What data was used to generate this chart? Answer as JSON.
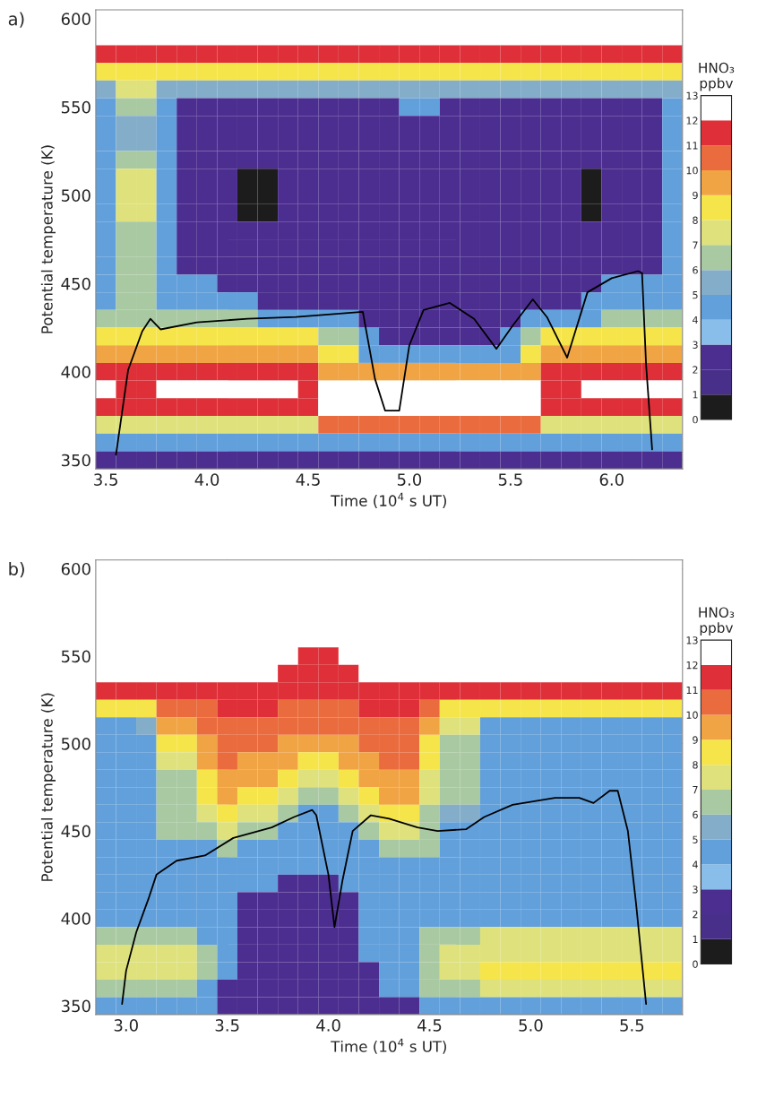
{
  "chart_data": [
    {
      "type": "heatmap",
      "title": "a)",
      "xlabel": "Time (10$^{4}$ s UT)",
      "ylabel": "Potential temperature (K)",
      "clabel": "HNO₃\nppbv",
      "xlim": [
        3.45,
        6.35
      ],
      "ylim": [
        345,
        605
      ],
      "xticks": [
        {
          "value": 3.5,
          "label": "3.5"
        },
        {
          "value": 4.0,
          "label": "4.0"
        },
        {
          "value": 4.5,
          "label": "4.5"
        },
        {
          "value": 5.0,
          "label": "5.0"
        },
        {
          "value": 5.5,
          "label": "5.5"
        },
        {
          "value": 6.0,
          "label": "6.0"
        }
      ],
      "yticks": [
        350,
        400,
        450,
        500,
        550,
        600
      ],
      "clim": [
        0,
        13
      ],
      "cticks": [
        0,
        1,
        2,
        3,
        4,
        5,
        6,
        7,
        8,
        9,
        10,
        11,
        12,
        13
      ],
      "colors": [
        "#1c1c1c",
        "#48308a",
        "#4c2e90",
        "#88bee9",
        "#62a0dc",
        "#83adc9",
        "#a9c9a2",
        "#dfe27c",
        "#f6e54a",
        "#f0a444",
        "#ea6c3e",
        "#df3039",
        "#ffffff"
      ],
      "cells": [
        [
          12.5,
          12.5,
          12.5,
          12.5,
          12.5,
          12.5,
          12.5,
          12.5,
          12.5,
          12.5,
          12.5,
          12.5,
          12.5,
          12.5,
          12.5,
          12.5,
          12.5,
          12.5,
          12.5,
          12.5,
          12.5,
          12.5,
          12.5,
          12.5,
          12.5,
          12.5,
          12.5,
          12.5,
          12.5
        ],
        [
          12.5,
          12.5,
          12.5,
          12.5,
          12.5,
          12.5,
          12.5,
          12.5,
          12.5,
          12.5,
          12.5,
          12.5,
          12.5,
          12.5,
          12.5,
          12.5,
          12.5,
          12.5,
          12.5,
          12.5,
          12.5,
          12.5,
          12.5,
          12.5,
          12.5,
          12.5,
          12.5,
          12.5,
          12.5
        ],
        [
          11.5,
          11.5,
          11.5,
          11.5,
          11.5,
          11.5,
          11.5,
          11.5,
          11.5,
          11.5,
          11.5,
          11.5,
          11.5,
          11.5,
          11.5,
          11.5,
          11.5,
          11.5,
          11.5,
          11.5,
          11.5,
          11.5,
          11.5,
          11.5,
          11.5,
          11.5,
          11.5,
          11.5,
          11.5
        ],
        [
          8.5,
          8.5,
          8.5,
          8.5,
          8.5,
          8.5,
          8.5,
          8.5,
          8.5,
          8.5,
          8.5,
          8.5,
          8.5,
          8.5,
          8.5,
          8.5,
          8.5,
          8.5,
          8.5,
          8.5,
          8.5,
          8.5,
          8.5,
          8.5,
          8.5,
          8.5,
          8.5,
          8.5,
          8.5
        ],
        [
          5.5,
          7.5,
          7.5,
          5.5,
          5.5,
          5.5,
          5.5,
          5.5,
          5.5,
          5.5,
          5.5,
          5.5,
          5.5,
          5.5,
          5.5,
          5.5,
          5.5,
          5.5,
          5.5,
          5.5,
          5.5,
          5.5,
          5.5,
          5.5,
          5.5,
          5.5,
          5.5,
          5.5,
          5.5
        ],
        [
          4.5,
          6.5,
          6.5,
          4.5,
          2.5,
          2.5,
          2.5,
          2.5,
          2.5,
          2.5,
          2.5,
          2.5,
          2.5,
          2.5,
          2.5,
          4.5,
          4.5,
          2.5,
          2.5,
          2.5,
          2.5,
          2.5,
          2.5,
          2.5,
          2.5,
          2.5,
          2.5,
          2.5,
          4.5
        ],
        [
          4.5,
          5.5,
          5.5,
          4.5,
          2.5,
          2.5,
          2.5,
          2.5,
          2.5,
          2.5,
          2.5,
          2.5,
          2.5,
          2.5,
          2.5,
          2.5,
          2.5,
          2.5,
          2.5,
          2.5,
          2.5,
          2.5,
          2.5,
          2.5,
          2.5,
          2.5,
          2.5,
          2.5,
          4.5
        ],
        [
          4.5,
          5.5,
          5.5,
          4.5,
          2.5,
          2.5,
          2.5,
          2.5,
          2.5,
          2.5,
          2.5,
          2.5,
          2.5,
          2.5,
          2.5,
          2.5,
          2.5,
          2.5,
          2.5,
          2.5,
          2.5,
          2.5,
          2.5,
          2.5,
          2.5,
          2.5,
          2.5,
          2.5,
          4.5
        ],
        [
          4.5,
          6.5,
          6.5,
          4.5,
          2.5,
          2.5,
          2.5,
          2.5,
          2.5,
          2.5,
          2.5,
          2.5,
          2.5,
          2.5,
          2.5,
          2.5,
          2.5,
          2.5,
          2.5,
          2.5,
          2.5,
          2.5,
          2.5,
          2.5,
          2.5,
          2.5,
          2.5,
          2.5,
          4.5
        ],
        [
          4.5,
          7.5,
          7.5,
          4.5,
          2.5,
          2.5,
          2.5,
          0.5,
          0.5,
          2.5,
          2.5,
          2.5,
          2.5,
          2.5,
          2.5,
          2.5,
          2.5,
          2.5,
          2.5,
          2.5,
          2.5,
          2.5,
          2.5,
          2.5,
          0.5,
          2.5,
          2.5,
          2.5,
          4.5
        ],
        [
          4.5,
          7.5,
          7.5,
          4.5,
          2.5,
          2.5,
          2.5,
          0.5,
          0.5,
          2.5,
          2.5,
          2.5,
          2.5,
          2.5,
          2.5,
          2.5,
          2.5,
          2.5,
          2.5,
          2.5,
          2.5,
          2.5,
          2.5,
          2.5,
          0.5,
          2.5,
          2.5,
          2.5,
          4.5
        ],
        [
          4.5,
          7.5,
          7.5,
          4.5,
          2.5,
          2.5,
          2.5,
          0.5,
          0.5,
          2.5,
          2.5,
          2.5,
          2.5,
          2.5,
          2.5,
          2.5,
          2.5,
          2.5,
          2.5,
          2.5,
          2.5,
          2.5,
          2.5,
          2.5,
          0.5,
          2.5,
          2.5,
          2.5,
          4.5
        ],
        [
          4.5,
          6.5,
          6.5,
          4.5,
          2.5,
          2.5,
          2.5,
          2.5,
          2.5,
          2.5,
          2.5,
          2.5,
          2.5,
          2.5,
          2.5,
          2.5,
          2.5,
          2.5,
          2.5,
          2.5,
          2.5,
          2.5,
          2.5,
          2.5,
          2.5,
          2.5,
          2.5,
          2.5,
          4.5
        ],
        [
          4.5,
          6.5,
          6.5,
          4.5,
          2.5,
          2.5,
          2.5,
          2.5,
          2.5,
          2.5,
          2.5,
          2.5,
          2.5,
          2.5,
          2.5,
          2.5,
          2.5,
          2.5,
          2.5,
          2.5,
          2.5,
          2.5,
          2.5,
          2.5,
          2.5,
          2.5,
          2.5,
          2.5,
          4.5
        ],
        [
          4.5,
          6.5,
          6.5,
          4.5,
          2.5,
          2.5,
          2.5,
          2.5,
          2.5,
          2.5,
          2.5,
          2.5,
          2.5,
          2.5,
          2.5,
          2.5,
          2.5,
          2.5,
          2.5,
          2.5,
          2.5,
          2.5,
          2.5,
          2.5,
          2.5,
          2.5,
          2.5,
          2.5,
          4.5
        ],
        [
          4.5,
          6.5,
          6.5,
          4.5,
          4.5,
          4.5,
          2.5,
          2.5,
          2.5,
          2.5,
          2.5,
          2.5,
          2.5,
          2.5,
          2.5,
          2.5,
          2.5,
          2.5,
          2.5,
          2.5,
          2.5,
          2.5,
          2.5,
          2.5,
          2.5,
          4.5,
          4.5,
          4.5,
          4.5
        ],
        [
          4.5,
          6.5,
          6.5,
          4.5,
          4.5,
          4.5,
          4.5,
          4.5,
          2.5,
          2.5,
          2.5,
          2.5,
          2.5,
          2.5,
          2.5,
          2.5,
          2.5,
          2.5,
          2.5,
          2.5,
          2.5,
          2.5,
          2.5,
          2.5,
          4.5,
          4.5,
          4.5,
          4.5,
          4.5
        ],
        [
          6.5,
          6.5,
          6.5,
          6.5,
          6.5,
          6.5,
          6.5,
          6.5,
          4.5,
          4.5,
          4.5,
          4.5,
          4.5,
          2.5,
          2.5,
          2.5,
          2.5,
          2.5,
          2.5,
          2.5,
          2.5,
          4.5,
          4.5,
          4.5,
          4.5,
          6.5,
          6.5,
          6.5,
          6.5
        ],
        [
          8.5,
          8.5,
          8.5,
          8.5,
          8.5,
          8.5,
          8.5,
          8.5,
          8.5,
          8.5,
          8.5,
          6.5,
          6.5,
          4.5,
          2.5,
          2.5,
          2.5,
          2.5,
          2.5,
          2.5,
          4.5,
          6.5,
          8.5,
          8.5,
          8.5,
          8.5,
          8.5,
          8.5,
          8.5
        ],
        [
          9.5,
          9.5,
          9.5,
          9.5,
          9.5,
          9.5,
          9.5,
          9.5,
          9.5,
          9.5,
          9.5,
          8.5,
          8.5,
          4.5,
          4.5,
          4.5,
          4.5,
          4.5,
          4.5,
          4.5,
          4.5,
          8.5,
          9.5,
          9.5,
          9.5,
          9.5,
          9.5,
          9.5,
          9.5
        ],
        [
          11.5,
          11.5,
          11.5,
          11.5,
          11.5,
          11.5,
          11.5,
          11.5,
          11.5,
          11.5,
          11.5,
          9.5,
          9.5,
          9.5,
          9.5,
          9.5,
          9.5,
          9.5,
          9.5,
          9.5,
          9.5,
          9.5,
          11.5,
          11.5,
          11.5,
          11.5,
          11.5,
          11.5,
          11.5
        ],
        [
          12.5,
          11.5,
          11.5,
          12.5,
          12.5,
          12.5,
          12.5,
          12.5,
          12.5,
          12.5,
          11.5,
          12.5,
          12.5,
          12.5,
          12.5,
          12.5,
          12.5,
          12.5,
          12.5,
          12.5,
          12.5,
          12.5,
          11.5,
          11.5,
          12.5,
          12.5,
          12.5,
          12.5,
          12.5
        ],
        [
          11.5,
          11.5,
          11.5,
          11.5,
          11.5,
          11.5,
          11.5,
          11.5,
          11.5,
          11.5,
          11.5,
          12.5,
          12.5,
          12.5,
          12.5,
          12.5,
          12.5,
          12.5,
          12.5,
          12.5,
          12.5,
          12.5,
          11.5,
          11.5,
          11.5,
          11.5,
          11.5,
          11.5,
          11.5
        ],
        [
          7.5,
          7.5,
          7.5,
          7.5,
          7.5,
          7.5,
          7.5,
          7.5,
          7.5,
          7.5,
          7.5,
          10.5,
          10.5,
          10.5,
          10.5,
          10.5,
          10.5,
          10.5,
          10.5,
          10.5,
          10.5,
          10.5,
          7.5,
          7.5,
          7.5,
          7.5,
          7.5,
          7.5,
          7.5
        ],
        [
          4.5,
          4.5,
          4.5,
          4.5,
          4.5,
          4.5,
          4.5,
          4.5,
          4.5,
          4.5,
          4.5,
          4.5,
          4.5,
          4.5,
          4.5,
          4.5,
          4.5,
          4.5,
          4.5,
          4.5,
          4.5,
          4.5,
          4.5,
          4.5,
          4.5,
          4.5,
          4.5,
          4.5,
          4.5
        ],
        [
          2.5,
          2.5,
          2.5,
          2.5,
          2.5,
          2.5,
          2.5,
          2.5,
          2.5,
          2.5,
          2.5,
          2.5,
          2.5,
          2.5,
          2.5,
          2.5,
          2.5,
          2.5,
          2.5,
          2.5,
          2.5,
          2.5,
          2.5,
          2.5,
          2.5,
          2.5,
          2.5,
          2.5,
          2.5
        ]
      ],
      "series": [
        {
          "type": "line",
          "color": "#000000",
          "x": [
            3.55,
            3.61,
            3.68,
            3.72,
            3.77,
            3.95,
            4.2,
            4.44,
            4.77,
            4.83,
            4.88,
            4.95,
            5.0,
            5.07,
            5.2,
            5.32,
            5.43,
            5.51,
            5.61,
            5.68,
            5.78,
            5.88,
            6.0,
            6.13,
            6.15,
            6.17,
            6.2
          ],
          "values": [
            353,
            401,
            423,
            430,
            424,
            428,
            430,
            431,
            434,
            396,
            378,
            378,
            415,
            435,
            439,
            430,
            413,
            426,
            441,
            431,
            408,
            445,
            453,
            457,
            456,
            404,
            356
          ]
        }
      ]
    },
    {
      "type": "heatmap",
      "title": "b)",
      "xlabel": "Time (10$^{4}$ s UT)",
      "ylabel": "Potential temperature (K)",
      "clabel": "HNO₃\nppbv",
      "xlim": [
        2.85,
        5.75
      ],
      "ylim": [
        345,
        605
      ],
      "xticks": [
        {
          "value": 3.0,
          "label": "3.0"
        },
        {
          "value": 3.5,
          "label": "3.5"
        },
        {
          "value": 4.0,
          "label": "4.0"
        },
        {
          "value": 4.5,
          "label": "4.5"
        },
        {
          "value": 5.0,
          "label": "5.0"
        },
        {
          "value": 5.5,
          "label": "5.5"
        }
      ],
      "yticks": [
        350,
        400,
        450,
        500,
        550,
        600
      ],
      "clim": [
        0,
        13
      ],
      "cticks": [
        0,
        1,
        2,
        3,
        4,
        5,
        6,
        7,
        8,
        9,
        10,
        11,
        12,
        13
      ],
      "colors": [
        "#1c1c1c",
        "#48308a",
        "#4c2e90",
        "#88bee9",
        "#62a0dc",
        "#83adc9",
        "#a9c9a2",
        "#dfe27c",
        "#f6e54a",
        "#f0a444",
        "#ea6c3e",
        "#df3039",
        "#ffffff"
      ],
      "cells": [
        [
          12.5,
          12.5,
          12.5,
          12.5,
          12.5,
          12.5,
          12.5,
          12.5,
          12.5,
          12.5,
          12.5,
          12.5,
          12.5,
          12.5,
          12.5,
          12.5,
          12.5,
          12.5,
          12.5,
          12.5,
          12.5,
          12.5,
          12.5,
          12.5,
          12.5,
          12.5,
          12.5,
          12.5,
          12.5
        ],
        [
          12.5,
          12.5,
          12.5,
          12.5,
          12.5,
          12.5,
          12.5,
          12.5,
          12.5,
          12.5,
          12.5,
          12.5,
          12.5,
          12.5,
          12.5,
          12.5,
          12.5,
          12.5,
          12.5,
          12.5,
          12.5,
          12.5,
          12.5,
          12.5,
          12.5,
          12.5,
          12.5,
          12.5,
          12.5
        ],
        [
          12.5,
          12.5,
          12.5,
          12.5,
          12.5,
          12.5,
          12.5,
          12.5,
          12.5,
          12.5,
          12.5,
          12.5,
          12.5,
          12.5,
          12.5,
          12.5,
          12.5,
          12.5,
          12.5,
          12.5,
          12.5,
          12.5,
          12.5,
          12.5,
          12.5,
          12.5,
          12.5,
          12.5,
          12.5
        ],
        [
          12.5,
          12.5,
          12.5,
          12.5,
          12.5,
          12.5,
          12.5,
          12.5,
          12.5,
          12.5,
          12.5,
          12.5,
          12.5,
          12.5,
          12.5,
          12.5,
          12.5,
          12.5,
          12.5,
          12.5,
          12.5,
          12.5,
          12.5,
          12.5,
          12.5,
          12.5,
          12.5,
          12.5,
          12.5
        ],
        [
          12.5,
          12.5,
          12.5,
          12.5,
          12.5,
          12.5,
          12.5,
          12.5,
          12.5,
          12.5,
          12.5,
          12.5,
          12.5,
          12.5,
          12.5,
          12.5,
          12.5,
          12.5,
          12.5,
          12.5,
          12.5,
          12.5,
          12.5,
          12.5,
          12.5,
          12.5,
          12.5,
          12.5,
          12.5
        ],
        [
          12.5,
          12.5,
          12.5,
          12.5,
          12.5,
          12.5,
          12.5,
          12.5,
          12.5,
          12.5,
          11.5,
          11.5,
          12.5,
          12.5,
          12.5,
          12.5,
          12.5,
          12.5,
          12.5,
          12.5,
          12.5,
          12.5,
          12.5,
          12.5,
          12.5,
          12.5,
          12.5,
          12.5,
          12.5
        ],
        [
          12.5,
          12.5,
          12.5,
          12.5,
          12.5,
          12.5,
          12.5,
          12.5,
          12.5,
          11.5,
          11.5,
          11.5,
          11.5,
          12.5,
          12.5,
          12.5,
          12.5,
          12.5,
          12.5,
          12.5,
          12.5,
          12.5,
          12.5,
          12.5,
          12.5,
          12.5,
          12.5,
          12.5,
          12.5
        ],
        [
          11.5,
          11.5,
          11.5,
          11.5,
          11.5,
          11.5,
          11.5,
          11.5,
          11.5,
          11.5,
          11.5,
          11.5,
          11.5,
          11.5,
          11.5,
          11.5,
          11.5,
          11.5,
          11.5,
          11.5,
          11.5,
          11.5,
          11.5,
          11.5,
          11.5,
          11.5,
          11.5,
          11.5,
          11.5
        ],
        [
          8.5,
          8.5,
          8.5,
          10.5,
          10.5,
          10.5,
          11.5,
          11.5,
          11.5,
          10.5,
          10.5,
          10.5,
          10.5,
          11.5,
          11.5,
          11.5,
          10.5,
          8.5,
          8.5,
          8.5,
          8.5,
          8.5,
          8.5,
          8.5,
          8.5,
          8.5,
          8.5,
          8.5,
          8.5
        ],
        [
          4.5,
          4.5,
          5.5,
          9.5,
          9.5,
          10.5,
          10.5,
          10.5,
          10.5,
          10.5,
          10.5,
          10.5,
          10.5,
          10.5,
          10.5,
          10.5,
          9.5,
          7.5,
          7.5,
          4.5,
          4.5,
          4.5,
          4.5,
          4.5,
          4.5,
          4.5,
          4.5,
          4.5,
          4.5
        ],
        [
          4.5,
          4.5,
          4.5,
          8.5,
          8.5,
          9.5,
          10.5,
          10.5,
          10.5,
          9.5,
          9.5,
          9.5,
          9.5,
          10.5,
          10.5,
          10.5,
          8.5,
          6.5,
          6.5,
          4.5,
          4.5,
          4.5,
          4.5,
          4.5,
          4.5,
          4.5,
          4.5,
          4.5,
          4.5
        ],
        [
          4.5,
          4.5,
          4.5,
          7.5,
          7.5,
          9.5,
          10.5,
          9.5,
          9.5,
          9.5,
          8.5,
          8.5,
          9.5,
          9.5,
          10.5,
          10.5,
          8.5,
          6.5,
          6.5,
          4.5,
          4.5,
          4.5,
          4.5,
          4.5,
          4.5,
          4.5,
          4.5,
          4.5,
          4.5
        ],
        [
          4.5,
          4.5,
          4.5,
          6.5,
          6.5,
          8.5,
          9.5,
          9.5,
          9.5,
          8.5,
          7.5,
          7.5,
          8.5,
          9.5,
          9.5,
          9.5,
          7.5,
          6.5,
          6.5,
          4.5,
          4.5,
          4.5,
          4.5,
          4.5,
          4.5,
          4.5,
          4.5,
          4.5,
          4.5
        ],
        [
          4.5,
          4.5,
          4.5,
          6.5,
          6.5,
          8.5,
          9.5,
          8.5,
          8.5,
          7.5,
          6.5,
          6.5,
          7.5,
          8.5,
          9.5,
          9.5,
          7.5,
          6.5,
          6.5,
          4.5,
          4.5,
          4.5,
          4.5,
          4.5,
          4.5,
          4.5,
          4.5,
          4.5,
          4.5
        ],
        [
          4.5,
          4.5,
          4.5,
          6.5,
          6.5,
          7.5,
          8.5,
          7.5,
          7.5,
          6.5,
          4.5,
          4.5,
          6.5,
          7.5,
          8.5,
          8.5,
          6.5,
          5.5,
          5.5,
          4.5,
          4.5,
          4.5,
          4.5,
          4.5,
          4.5,
          4.5,
          4.5,
          4.5,
          4.5
        ],
        [
          4.5,
          4.5,
          4.5,
          6.5,
          6.5,
          6.5,
          7.5,
          6.5,
          6.5,
          4.5,
          4.5,
          4.5,
          4.5,
          6.5,
          7.5,
          7.5,
          6.5,
          4.5,
          4.5,
          4.5,
          4.5,
          4.5,
          4.5,
          4.5,
          4.5,
          4.5,
          4.5,
          4.5,
          4.5
        ],
        [
          4.5,
          4.5,
          4.5,
          4.5,
          4.5,
          4.5,
          6.5,
          4.5,
          4.5,
          4.5,
          4.5,
          4.5,
          4.5,
          4.5,
          6.5,
          6.5,
          6.5,
          4.5,
          4.5,
          4.5,
          4.5,
          4.5,
          4.5,
          4.5,
          4.5,
          4.5,
          4.5,
          4.5,
          4.5
        ],
        [
          4.5,
          4.5,
          4.5,
          4.5,
          4.5,
          4.5,
          4.5,
          4.5,
          4.5,
          4.5,
          4.5,
          4.5,
          4.5,
          4.5,
          4.5,
          4.5,
          4.5,
          4.5,
          4.5,
          4.5,
          4.5,
          4.5,
          4.5,
          4.5,
          4.5,
          4.5,
          4.5,
          4.5,
          4.5
        ],
        [
          4.5,
          4.5,
          4.5,
          4.5,
          4.5,
          4.5,
          4.5,
          4.5,
          4.5,
          2.5,
          2.5,
          2.5,
          4.5,
          4.5,
          4.5,
          4.5,
          4.5,
          4.5,
          4.5,
          4.5,
          4.5,
          4.5,
          4.5,
          4.5,
          4.5,
          4.5,
          4.5,
          4.5,
          4.5
        ],
        [
          4.5,
          4.5,
          4.5,
          4.5,
          4.5,
          4.5,
          4.5,
          2.5,
          2.5,
          2.5,
          2.5,
          2.5,
          2.5,
          4.5,
          4.5,
          4.5,
          4.5,
          4.5,
          4.5,
          4.5,
          4.5,
          4.5,
          4.5,
          4.5,
          4.5,
          4.5,
          4.5,
          4.5,
          4.5
        ],
        [
          4.5,
          4.5,
          4.5,
          4.5,
          4.5,
          4.5,
          4.5,
          2.5,
          2.5,
          2.5,
          2.5,
          2.5,
          2.5,
          4.5,
          4.5,
          4.5,
          4.5,
          4.5,
          4.5,
          4.5,
          4.5,
          4.5,
          4.5,
          4.5,
          4.5,
          4.5,
          4.5,
          4.5,
          4.5
        ],
        [
          6.5,
          6.5,
          6.5,
          6.5,
          6.5,
          4.5,
          4.5,
          2.5,
          2.5,
          2.5,
          2.5,
          2.5,
          2.5,
          4.5,
          4.5,
          4.5,
          6.5,
          6.5,
          6.5,
          7.5,
          7.5,
          7.5,
          7.5,
          7.5,
          7.5,
          7.5,
          7.5,
          7.5,
          7.5
        ],
        [
          7.5,
          7.5,
          7.5,
          7.5,
          7.5,
          6.5,
          4.5,
          2.5,
          2.5,
          2.5,
          2.5,
          2.5,
          2.5,
          4.5,
          4.5,
          4.5,
          6.5,
          7.5,
          7.5,
          7.5,
          7.5,
          7.5,
          7.5,
          7.5,
          7.5,
          7.5,
          7.5,
          7.5,
          7.5
        ],
        [
          7.5,
          7.5,
          7.5,
          7.5,
          7.5,
          6.5,
          4.5,
          2.5,
          2.5,
          2.5,
          2.5,
          2.5,
          2.5,
          2.5,
          4.5,
          4.5,
          6.5,
          7.5,
          7.5,
          8.5,
          8.5,
          8.5,
          8.5,
          8.5,
          8.5,
          8.5,
          8.5,
          8.5,
          8.5
        ],
        [
          6.5,
          6.5,
          6.5,
          6.5,
          6.5,
          4.5,
          2.5,
          2.5,
          2.5,
          2.5,
          2.5,
          2.5,
          2.5,
          2.5,
          4.5,
          4.5,
          6.5,
          6.5,
          6.5,
          7.5,
          7.5,
          7.5,
          7.5,
          7.5,
          7.5,
          7.5,
          7.5,
          7.5,
          7.5
        ],
        [
          4.5,
          4.5,
          4.5,
          4.5,
          4.5,
          4.5,
          2.5,
          2.5,
          2.5,
          2.5,
          2.5,
          2.5,
          2.5,
          2.5,
          2.5,
          2.5,
          4.5,
          4.5,
          4.5,
          4.5,
          4.5,
          4.5,
          4.5,
          4.5,
          4.5,
          4.5,
          4.5,
          4.5,
          4.5
        ]
      ],
      "series": [
        {
          "type": "line",
          "color": "#000000",
          "x": [
            2.98,
            3.0,
            3.05,
            3.11,
            3.15,
            3.25,
            3.39,
            3.53,
            3.72,
            3.83,
            3.92,
            3.94,
            4.0,
            4.03,
            4.07,
            4.12,
            4.21,
            4.3,
            4.44,
            4.54,
            4.68,
            4.77,
            4.91,
            5.12,
            5.24,
            5.31,
            5.39,
            5.43,
            5.48,
            5.52,
            5.57
          ],
          "values": [
            351,
            370,
            392,
            411,
            425,
            433,
            436,
            446,
            452,
            458,
            462,
            459,
            425,
            395,
            422,
            450,
            459,
            457,
            452,
            450,
            451,
            458,
            465,
            469,
            469,
            466,
            473,
            473,
            450,
            409,
            351
          ]
        }
      ]
    }
  ]
}
